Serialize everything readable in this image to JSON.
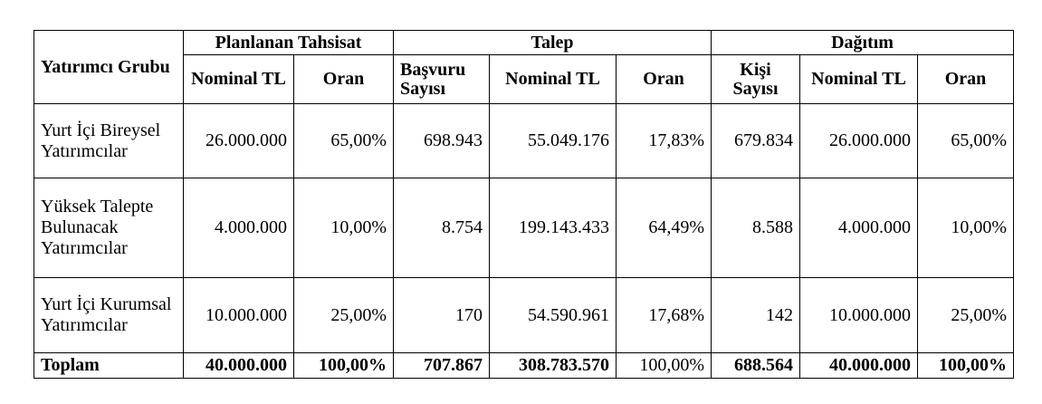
{
  "header": {
    "group_label": "Yatırımcı Grubu",
    "planned": "Planlanan Tahsisat",
    "demand": "Talep",
    "distribution": "Dağıtım",
    "sub": [
      "Nominal TL",
      "Oran",
      "Başvuru Sayısı",
      "Nominal TL",
      "Oran",
      "Kişi Sayısı",
      "Nominal TL",
      "Oran"
    ]
  },
  "rows": [
    {
      "name": "Yurt İçi Bireysel Yatırımcılar",
      "cells": [
        "26.000.000",
        "65,00%",
        "698.943",
        "55.049.176",
        "17,83%",
        "679.834",
        "26.000.000",
        "65,00%"
      ]
    },
    {
      "name": "Yüksek Talepte Bulunacak Yatırımcılar",
      "cells": [
        "4.000.000",
        "10,00%",
        "8.754",
        "199.143.433",
        "64,49%",
        "8.588",
        "4.000.000",
        "10,00%"
      ]
    },
    {
      "name": "Yurt İçi Kurumsal Yatırımcılar",
      "cells": [
        "10.000.000",
        "25,00%",
        "170",
        "54.590.961",
        "17,68%",
        "142",
        "10.000.000",
        "25,00%"
      ]
    }
  ],
  "total": {
    "name": "Toplam",
    "cells": [
      "40.000.000",
      "100,00%",
      "707.867",
      "308.783.570",
      "100,00%",
      "688.564",
      "40.000.000",
      "100,00%"
    ]
  }
}
